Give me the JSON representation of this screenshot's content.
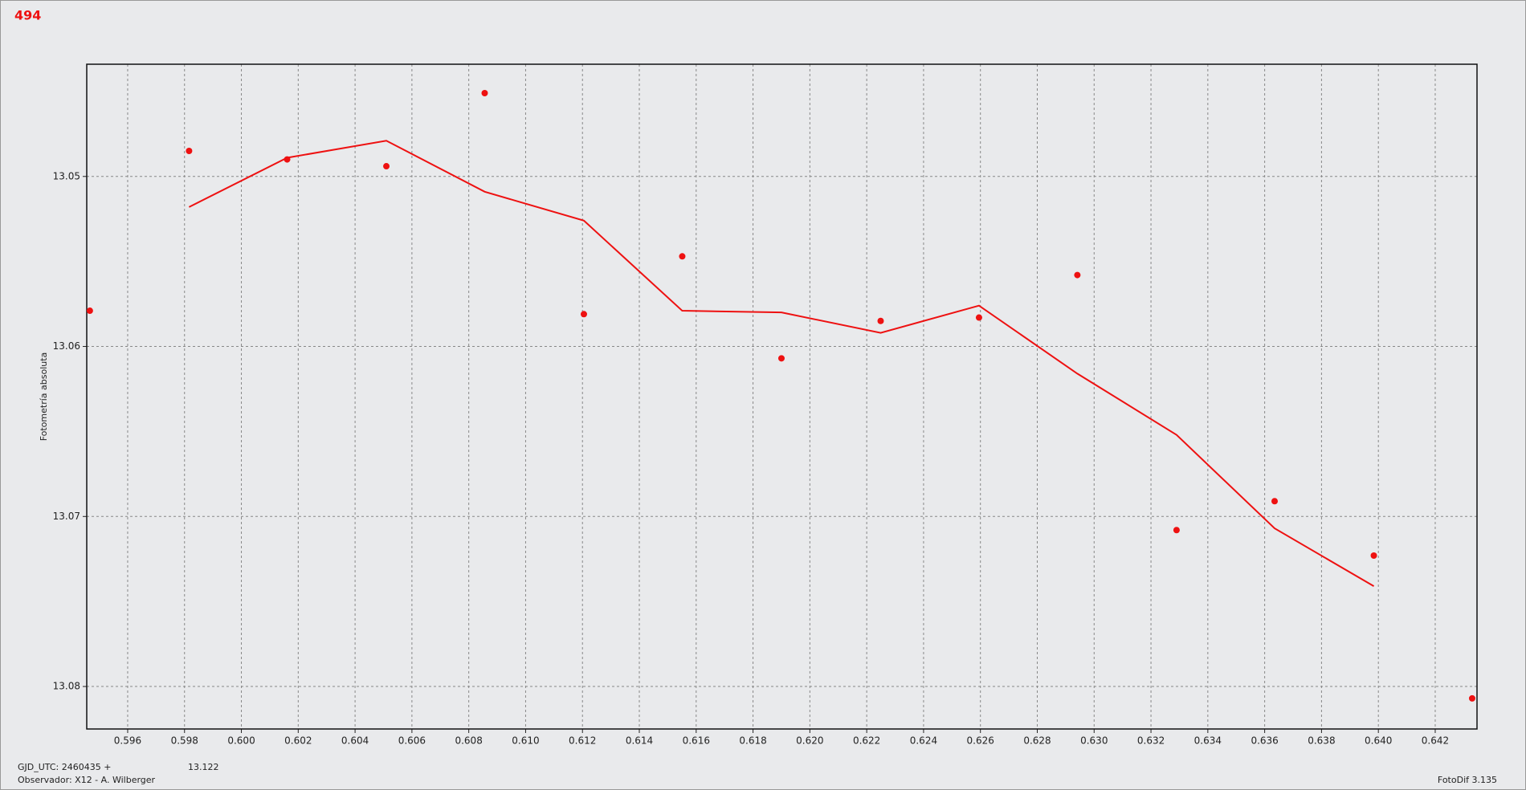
{
  "chart_data": {
    "type": "scatter",
    "title": "494",
    "y_label": "Fotometría absoluta",
    "footer": {
      "gjd": "GJD_UTC: 2460435 +",
      "value": "13.122",
      "observer": "Observador: X12 - A. Wilberger",
      "software": "FotoDif 3.135"
    },
    "color": "#ee1111",
    "y_inverted": true,
    "grid": true,
    "points": {
      "x": [
        0.59467,
        0.59816,
        0.60161,
        0.6051,
        0.60856,
        0.61205,
        0.61551,
        0.619,
        0.62249,
        0.62595,
        0.62941,
        0.6329,
        0.63635,
        0.63984,
        0.6433
      ],
      "values": [
        13.0579,
        13.0485,
        13.049,
        13.0494,
        13.0451,
        13.0581,
        13.0547,
        13.0607,
        13.0585,
        13.0583,
        13.0558,
        13.0708,
        13.0691,
        13.0723,
        13.0807
      ]
    },
    "line": {
      "x": [
        0.59816,
        0.60161,
        0.6051,
        0.60856,
        0.61205,
        0.61551,
        0.619,
        0.62249,
        0.62595,
        0.62941,
        0.6329,
        0.63635,
        0.63984
      ],
      "values": [
        13.0518,
        13.0489,
        13.0479,
        13.0509,
        13.0526,
        13.0579,
        13.058,
        13.0592,
        13.0576,
        13.0616,
        13.0652,
        13.0707,
        13.0741
      ]
    },
    "xlim": [
      0.59456,
      0.64347
    ],
    "ylim": [
      13.0434,
      13.0825
    ],
    "xticks": [
      0.596,
      0.598,
      {
        "value": 0.6,
        "label": "0.600"
      },
      0.602,
      0.604,
      0.606,
      0.608,
      {
        "value": 0.61,
        "label": "0.610"
      },
      0.612,
      0.614,
      0.616,
      0.618,
      {
        "value": 0.62,
        "label": "0.620"
      },
      0.622,
      0.624,
      0.626,
      0.628,
      {
        "value": 0.63,
        "label": "0.630"
      },
      0.632,
      0.634,
      0.636,
      0.638,
      {
        "value": 0.64,
        "label": "0.640"
      },
      0.642
    ],
    "yticks": [
      13.05,
      13.06,
      13.07,
      13.08
    ]
  }
}
